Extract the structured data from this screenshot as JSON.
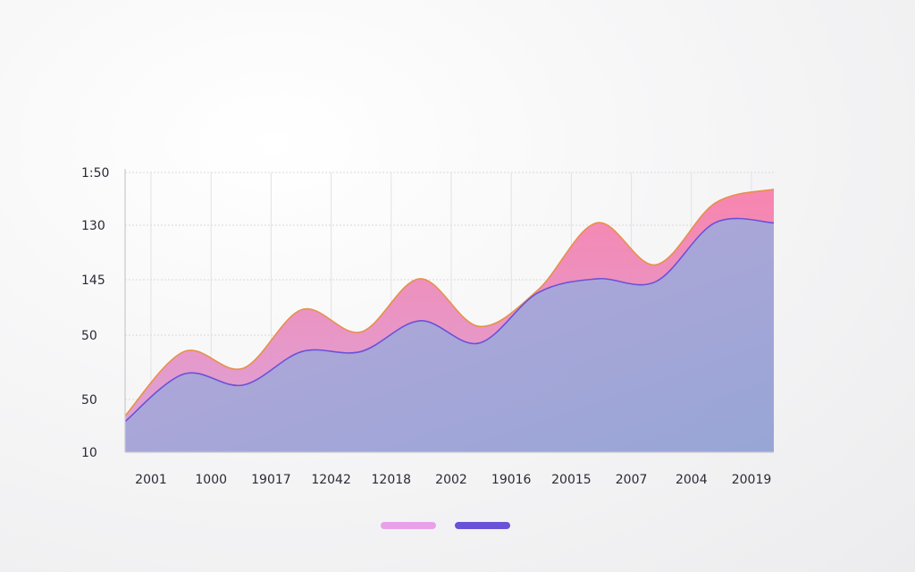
{
  "chart_data": {
    "type": "area",
    "stacked": false,
    "title": "",
    "xlabel": "",
    "ylabel": "",
    "grid": true,
    "legend_placement": "bottom-center",
    "y_tick_labels": [
      "1:50",
      "130",
      "145",
      "50",
      "50",
      "10"
    ],
    "x_tick_labels": [
      "2001",
      "1000",
      "19017",
      "12042",
      "12018",
      "2002",
      "19016",
      "20015",
      "2007",
      "2004",
      "20019"
    ],
    "series": [
      {
        "color": "#f08cb0",
        "stroke": "#e8904a",
        "values": [
          0.13,
          0.36,
          0.3,
          0.51,
          0.43,
          0.62,
          0.45,
          0.58,
          0.82,
          0.67,
          0.89,
          0.94
        ]
      },
      {
        "color": "#a9a7d8",
        "stroke": "#6a52d8",
        "values": [
          0.11,
          0.28,
          0.24,
          0.36,
          0.36,
          0.47,
          0.39,
          0.57,
          0.62,
          0.61,
          0.82,
          0.82
        ]
      }
    ],
    "legend_colors": [
      "#e8a0e8",
      "#6a52d8"
    ]
  }
}
